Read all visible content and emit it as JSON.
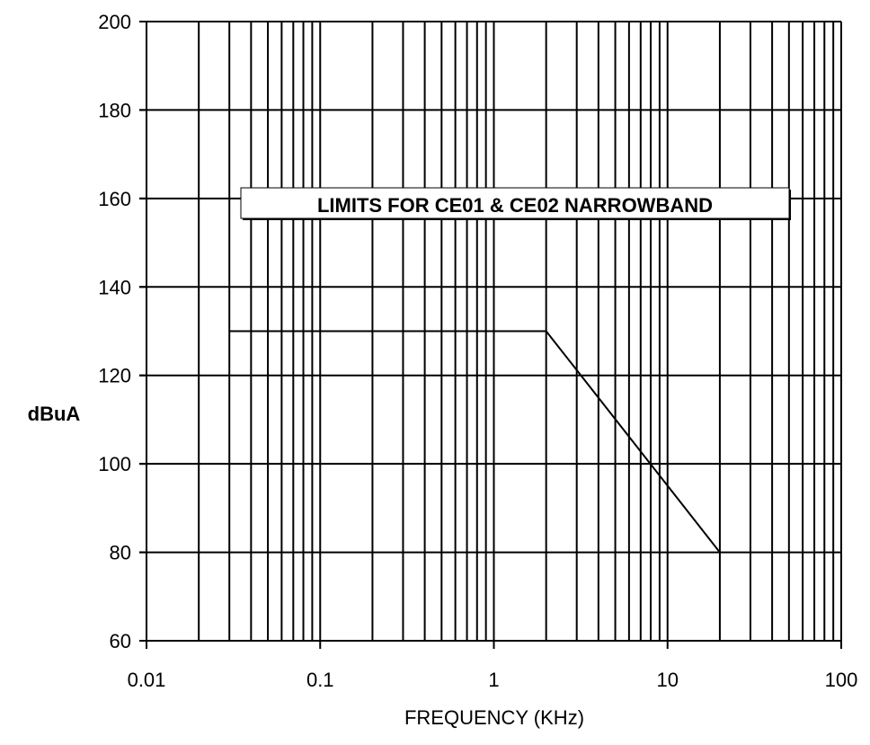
{
  "chart_data": {
    "type": "line",
    "title": "LIMITS FOR CE01 & CE02 NARROWBAND",
    "xlabel": "FREQUENCY (KHz)",
    "ylabel": "dBuA",
    "x_scale": "log",
    "xlim": [
      0.01,
      100
    ],
    "ylim": [
      60,
      200
    ],
    "x_ticks": [
      0.01,
      0.1,
      1,
      10,
      100
    ],
    "x_tick_labels": [
      "0.01",
      "0.1",
      "1",
      "10",
      "100"
    ],
    "y_ticks": [
      60,
      80,
      100,
      120,
      140,
      160,
      180,
      200
    ],
    "y_tick_labels": [
      "60",
      "80",
      "100",
      "120",
      "140",
      "160",
      "180",
      "200"
    ],
    "grid": true,
    "legend": "none",
    "series": [
      {
        "x": [
          0.03,
          2,
          20
        ],
        "y": [
          130,
          130,
          80
        ]
      }
    ],
    "colors": {
      "line": "#000000",
      "grid": "#000000",
      "background": "#ffffff"
    }
  }
}
